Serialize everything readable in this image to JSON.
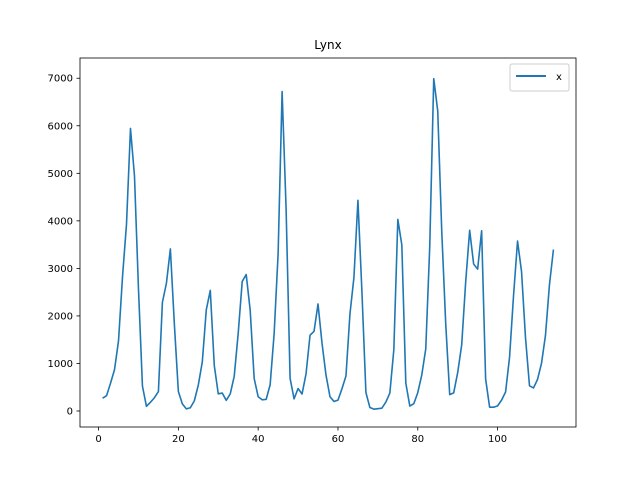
{
  "chart_data": {
    "type": "line",
    "title": "Lynx",
    "xlabel": "",
    "ylabel": "",
    "xlim": [
      -4.65,
      119.65
    ],
    "ylim": [
      -336.5,
      7425.5
    ],
    "x_ticks": [
      0,
      20,
      40,
      60,
      80,
      100
    ],
    "y_ticks": [
      0,
      1000,
      2000,
      3000,
      4000,
      5000,
      6000,
      7000
    ],
    "grid": false,
    "legend": "top-right",
    "series": [
      {
        "name": "x",
        "color": "#1f77b4",
        "x": [
          1,
          2,
          3,
          4,
          5,
          6,
          7,
          8,
          9,
          10,
          11,
          12,
          13,
          14,
          15,
          16,
          17,
          18,
          19,
          20,
          21,
          22,
          23,
          24,
          25,
          26,
          27,
          28,
          29,
          30,
          31,
          32,
          33,
          34,
          35,
          36,
          37,
          38,
          39,
          40,
          41,
          42,
          43,
          44,
          45,
          46,
          47,
          48,
          49,
          50,
          51,
          52,
          53,
          54,
          55,
          56,
          57,
          58,
          59,
          60,
          61,
          62,
          63,
          64,
          65,
          66,
          67,
          68,
          69,
          70,
          71,
          72,
          73,
          74,
          75,
          76,
          77,
          78,
          79,
          80,
          81,
          82,
          83,
          84,
          85,
          86,
          87,
          88,
          89,
          90,
          91,
          92,
          93,
          94,
          95,
          96,
          97,
          98,
          99,
          100,
          101,
          102,
          103,
          104,
          105,
          106,
          107,
          108,
          109,
          110,
          111,
          112,
          113,
          114
        ],
        "values": [
          269,
          321,
          585,
          871,
          1475,
          2821,
          3928,
          5943,
          4950,
          2577,
          523,
          98,
          184,
          279,
          409,
          2285,
          2685,
          3409,
          1824,
          409,
          151,
          45,
          68,
          213,
          546,
          1033,
          2129,
          2536,
          957,
          361,
          377,
          225,
          360,
          731,
          1638,
          2725,
          2871,
          2119,
          684,
          299,
          236,
          245,
          552,
          1623,
          3311,
          6721,
          4254,
          687,
          255,
          473,
          358,
          784,
          1594,
          1676,
          2251,
          1426,
          756,
          299,
          201,
          229,
          469,
          736,
          2042,
          2811,
          4431,
          2511,
          389,
          73,
          39,
          49,
          59,
          188,
          377,
          1292,
          4031,
          3495,
          587,
          105,
          153,
          387,
          758,
          1307,
          3465,
          6991,
          6313,
          3794,
          1836,
          345,
          382,
          808,
          1388,
          2713,
          3800,
          3091,
          2985,
          3790,
          674,
          81,
          80,
          108,
          229,
          399,
          1132,
          2432,
          3574,
          2935,
          1537,
          529,
          485,
          662,
          1000,
          1590,
          2657,
          3396
        ]
      }
    ]
  }
}
